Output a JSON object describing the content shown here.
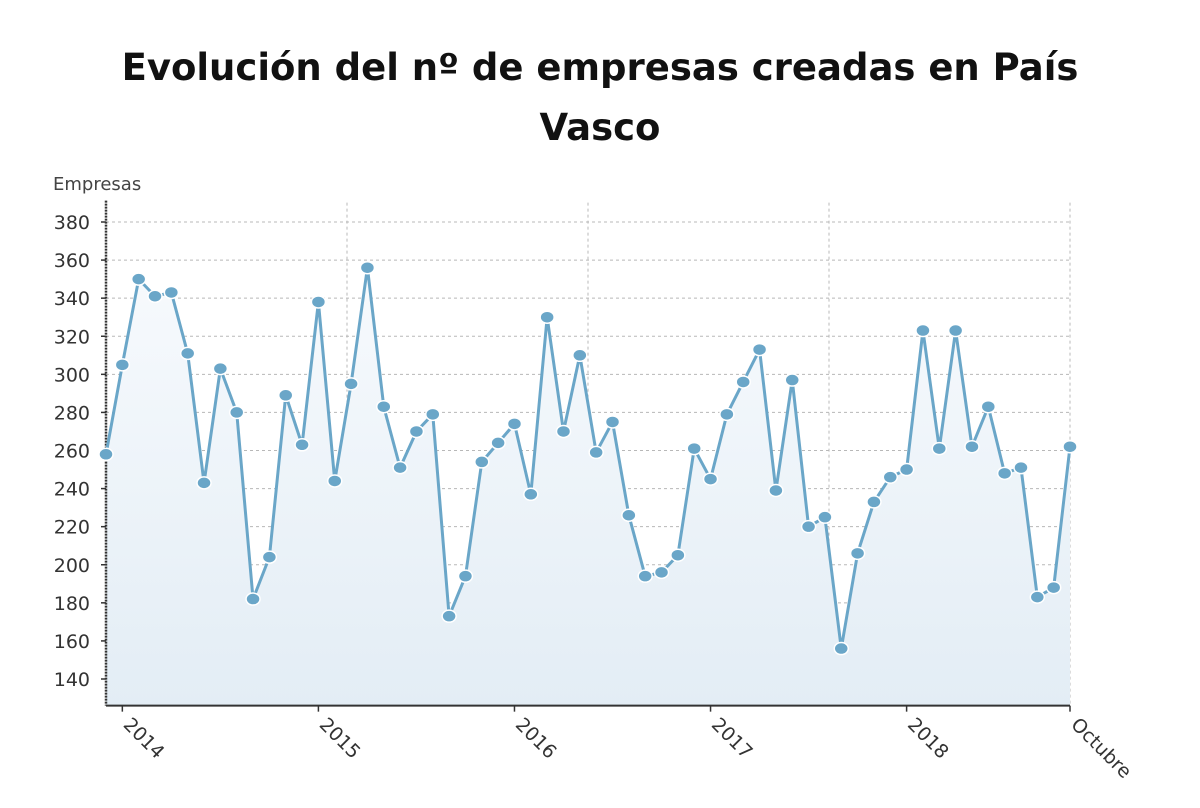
{
  "chart_data": {
    "type": "area",
    "title_lines": [
      "Evolución del nº de empresas creadas en País",
      "Vasco"
    ],
    "ylabel": "Empresas",
    "xlabel": "",
    "ylim": [
      126,
      386
    ],
    "yticks": [
      140,
      160,
      180,
      200,
      220,
      240,
      260,
      280,
      300,
      320,
      340,
      360,
      380
    ],
    "xtick_labels": [
      {
        "label": "2014",
        "index": 1
      },
      {
        "label": "2015",
        "index": 13
      },
      {
        "label": "2016",
        "index": 25
      },
      {
        "label": "2017",
        "index": 37
      },
      {
        "label": "2018",
        "index": 49
      },
      {
        "label": "Octubre",
        "index": 59
      }
    ],
    "grid": true,
    "colors": {
      "line": "#6aa6c8",
      "marker": "#6aa6c8",
      "fill_top": "#f7fafd",
      "fill_bottom": "#e3edf5",
      "grid": "#b8b8b8"
    },
    "values": [
      258,
      305,
      350,
      341,
      343,
      311,
      243,
      303,
      280,
      182,
      204,
      289,
      263,
      338,
      244,
      295,
      356,
      283,
      251,
      270,
      279,
      173,
      194,
      254,
      264,
      274,
      237,
      330,
      270,
      310,
      259,
      275,
      226,
      194,
      196,
      205,
      261,
      245,
      279,
      296,
      313,
      239,
      297,
      220,
      225,
      156,
      206,
      233,
      246,
      250,
      323,
      261,
      323,
      262,
      283,
      248,
      251,
      183,
      188,
      262
    ]
  }
}
